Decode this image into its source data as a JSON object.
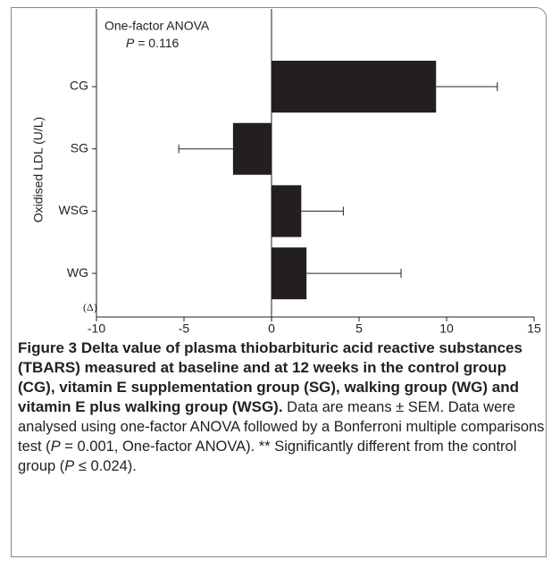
{
  "chart_data": {
    "type": "hbar",
    "annotation_title": "One-factor ANOVA",
    "annotation_stat_symbol": "P",
    "annotation_stat": " = 0.116",
    "ylabel": "Oxidised LDL (U/L)",
    "xlabel": "(Δ)",
    "categories": [
      "CG",
      "SG",
      "WSG",
      "WG"
    ],
    "series": [
      {
        "color": "#231f20",
        "values": [
          9.4,
          -2.2,
          1.7,
          2.0
        ],
        "errors": [
          3.5,
          3.1,
          2.4,
          5.4
        ]
      }
    ],
    "xlim": [
      -10,
      15
    ],
    "xticks": [
      -10,
      -5,
      0,
      5,
      10,
      15
    ]
  },
  "caption": {
    "title": "Figure 3 Delta value of plasma thiobarbituric acid reactive substances (TBARS) measured at baseline and at 12 weeks in the control group (CG), vitamin E supplementation group (SG), walking group (WG) and vitamin E plus walking group (WSG).",
    "text_parts": [
      "Data are means ± SEM. Data were analysed using one-factor ANOVA followed by a Bonferroni multiple comparisons test (",
      "P",
      " = 0.001, One-factor ANOVA). ** Significantly different from the control group (",
      "P",
      " ≤ 0.024)."
    ]
  }
}
